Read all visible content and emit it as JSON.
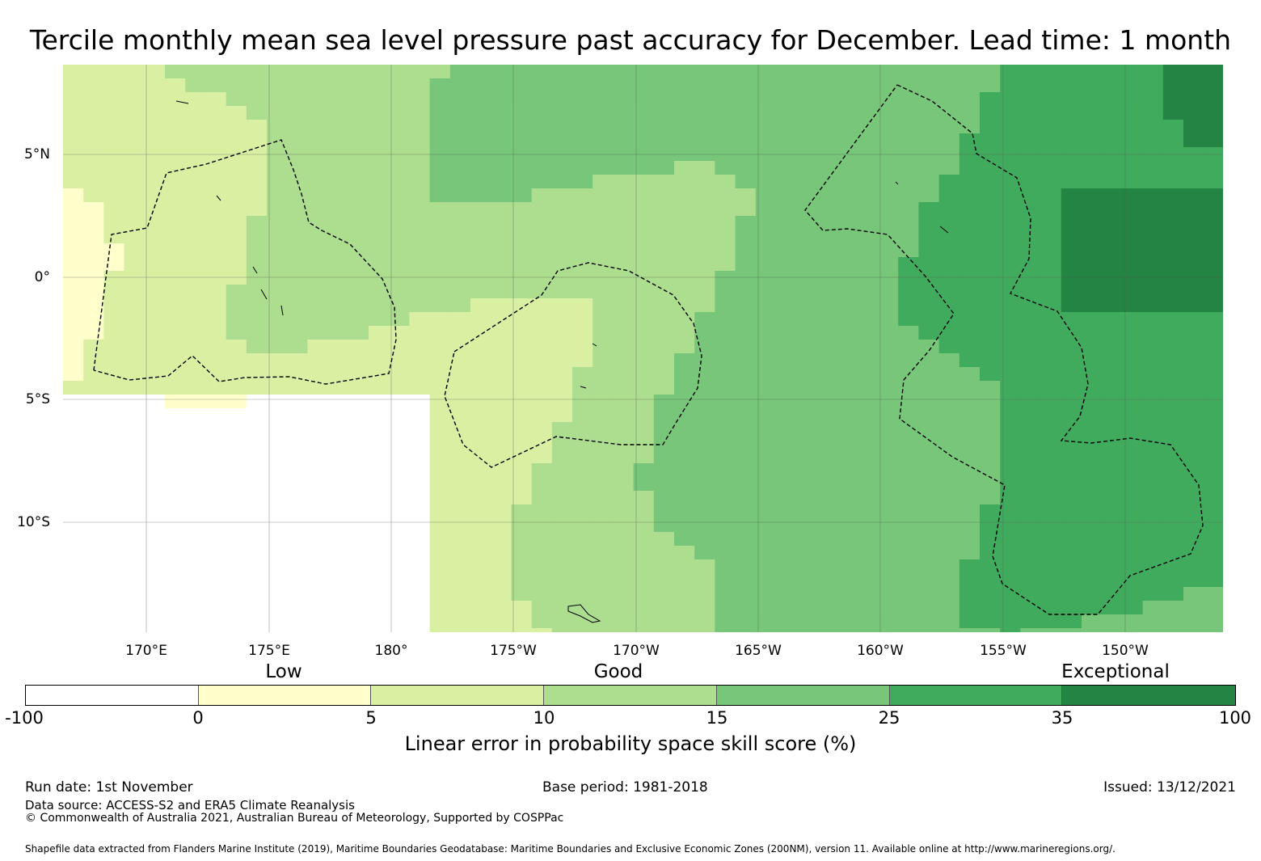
{
  "title": "Tercile monthly mean sea level pressure past accuracy for December. Lead time: 1 month",
  "map": {
    "lat_labels": [
      "5°N",
      "0°",
      "5°S",
      "10°S"
    ],
    "lon_labels": [
      "170°E",
      "175°E",
      "180°",
      "175°W",
      "170°W",
      "165°W",
      "160°W",
      "155°W",
      "150°W"
    ]
  },
  "legend": {
    "bands": [
      "Low",
      "Good",
      "Exceptional"
    ],
    "ticks": [
      "-100",
      "0",
      "5",
      "10",
      "15",
      "25",
      "35",
      "100"
    ],
    "colors": [
      "#ffffff",
      "#ffffcc",
      "#d9f0a3",
      "#addd8e",
      "#78c679",
      "#41ab5d",
      "#238443"
    ],
    "label": "Linear error in probability space skill score (%)"
  },
  "footer": {
    "run_date": "Run date: 1st November",
    "base_period": "Base period: 1981-2018",
    "issued": "Issued: 13/12/2021",
    "data_source": "Data source: ACCESS-S2 and ERA5 Climate Reanalysis",
    "copyright": "© Commonwealth of Australia 2021, Australian Bureau of Meteorology, Supported by COSPPac",
    "shapefile": "Shapefile data extracted from Flanders Marine Institute (2019), Maritime Boundaries Geodatabase: Maritime Boundaries and Exclusive Economic Zones (200NM), version 11. Available online at http://www.marineregions.org/."
  }
}
